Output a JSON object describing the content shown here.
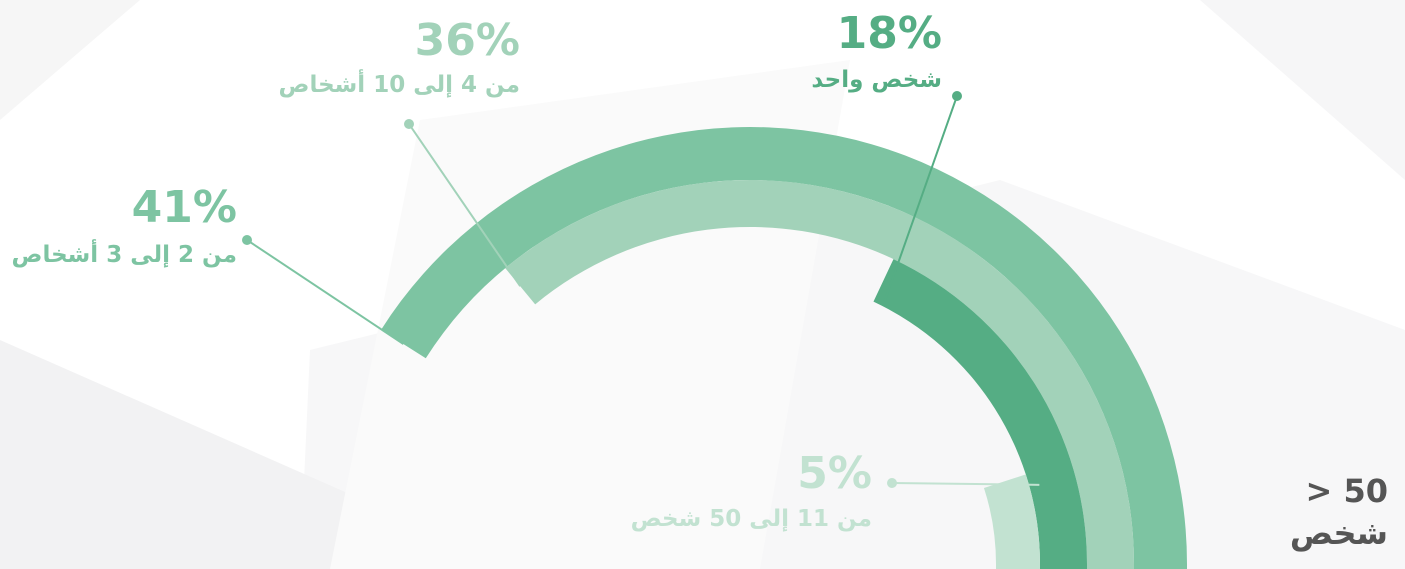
{
  "chart_data": {
    "type": "radial-bar",
    "categories": [
      "من 2 إلى 3 أشخاص",
      "من 4 إلى 10 أشخاص",
      "شخص واحد",
      "من 11 إلى 50 شخص",
      "> 50 شخص"
    ],
    "values": [
      41,
      36,
      18,
      5,
      null
    ],
    "value_labels": [
      "41%",
      "36%",
      "18%",
      "5%",
      null
    ],
    "colors": [
      "#7dc4a2",
      "#a2d2b9",
      "#55ad84",
      "#c2e2d1",
      "#555555"
    ]
  }
}
